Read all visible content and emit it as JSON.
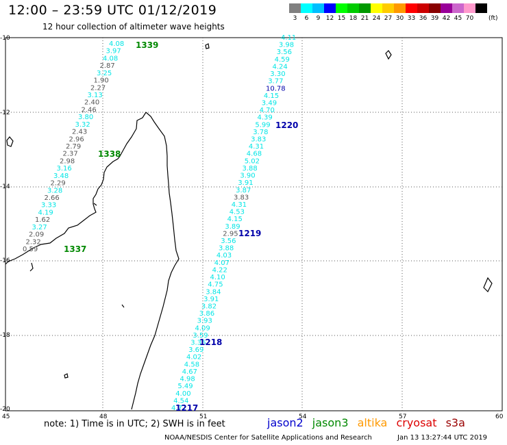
{
  "header": {
    "title": "12:00 – 23:59 UTC 01/12/2019",
    "subtitle": "12 hour collection of altimeter wave heights"
  },
  "legend": {
    "unit": "(ft)",
    "bins": [
      {
        "label": "3",
        "color": "#808080"
      },
      {
        "label": "6",
        "color": "#00ffff"
      },
      {
        "label": "9",
        "color": "#00bfff"
      },
      {
        "label": "12",
        "color": "#0000ff"
      },
      {
        "label": "15",
        "color": "#00ff00"
      },
      {
        "label": "18",
        "color": "#00cc00"
      },
      {
        "label": "21",
        "color": "#009900"
      },
      {
        "label": "24",
        "color": "#ffff00"
      },
      {
        "label": "27",
        "color": "#ffcc00"
      },
      {
        "label": "30",
        "color": "#ff9900"
      },
      {
        "label": "33",
        "color": "#ff0000"
      },
      {
        "label": "36",
        "color": "#cc0000"
      },
      {
        "label": "39",
        "color": "#880000"
      },
      {
        "label": "42",
        "color": "#990099"
      },
      {
        "label": "45",
        "color": "#cc66cc"
      },
      {
        "label": "70",
        "color": "#ff99cc"
      },
      {
        "label": "",
        "color": "#000000"
      }
    ]
  },
  "axes": {
    "lon_ticks": [
      "45",
      "48",
      "51",
      "54",
      "57",
      "60"
    ],
    "lat_ticks": [
      "-10",
      "-12",
      "-14",
      "-16",
      "-18",
      "-20"
    ]
  },
  "colors": {
    "cyan": "#00e5e5",
    "gray": "#555555",
    "navy": "#0000aa",
    "jason2": "#0000cc",
    "jason3": "#008800",
    "altika": "#ff9900",
    "cryosat": "#dd0000",
    "s3a": "#990000"
  },
  "track_labels": {
    "t1339": "1339",
    "t1338": "1338",
    "t1337": "1337",
    "t1220": "1220",
    "t1219": "1219",
    "t1218": "1218",
    "t1217": "1217"
  },
  "left_track": [
    {
      "v": "4.08",
      "c": "cyan"
    },
    {
      "v": "3.97",
      "c": "cyan"
    },
    {
      "v": "4.08",
      "c": "cyan"
    },
    {
      "v": "2.87",
      "c": "gray"
    },
    {
      "v": "3.25",
      "c": "cyan"
    },
    {
      "v": "1.90",
      "c": "gray"
    },
    {
      "v": "2.27",
      "c": "gray"
    },
    {
      "v": "3.13",
      "c": "cyan"
    },
    {
      "v": "2.40",
      "c": "gray"
    },
    {
      "v": "2.46",
      "c": "gray"
    },
    {
      "v": "3.80",
      "c": "cyan"
    },
    {
      "v": "3.32",
      "c": "cyan"
    },
    {
      "v": "2.43",
      "c": "gray"
    },
    {
      "v": "2.96",
      "c": "gray"
    },
    {
      "v": "2.79",
      "c": "gray"
    },
    {
      "v": "2.37",
      "c": "gray"
    },
    {
      "v": "2.98",
      "c": "gray"
    },
    {
      "v": "3.16",
      "c": "cyan"
    },
    {
      "v": "3.48",
      "c": "cyan"
    },
    {
      "v": "2.29",
      "c": "gray"
    },
    {
      "v": "3.28",
      "c": "cyan"
    },
    {
      "v": "2.66",
      "c": "gray"
    },
    {
      "v": "3.33",
      "c": "cyan"
    },
    {
      "v": "4.19",
      "c": "cyan"
    },
    {
      "v": "1.62",
      "c": "gray"
    },
    {
      "v": "3.27",
      "c": "cyan"
    },
    {
      "v": "2.09",
      "c": "gray"
    },
    {
      "v": "2.32",
      "c": "gray"
    },
    {
      "v": "0.59",
      "c": "gray"
    }
  ],
  "right_track": [
    {
      "v": "4.11",
      "c": "cyan"
    },
    {
      "v": "3.98",
      "c": "cyan"
    },
    {
      "v": "3.56",
      "c": "cyan"
    },
    {
      "v": "4.59",
      "c": "cyan"
    },
    {
      "v": "4.24",
      "c": "cyan"
    },
    {
      "v": "3.30",
      "c": "cyan"
    },
    {
      "v": "3.77",
      "c": "cyan"
    },
    {
      "v": "10.78",
      "c": "navy"
    },
    {
      "v": "4.15",
      "c": "cyan"
    },
    {
      "v": "3.49",
      "c": "cyan"
    },
    {
      "v": "4.70",
      "c": "cyan"
    },
    {
      "v": "4.39",
      "c": "cyan"
    },
    {
      "v": "5.99",
      "c": "cyan"
    },
    {
      "v": "3.78",
      "c": "cyan"
    },
    {
      "v": "3.83",
      "c": "cyan"
    },
    {
      "v": "4.31",
      "c": "cyan"
    },
    {
      "v": "4.68",
      "c": "cyan"
    },
    {
      "v": "5.02",
      "c": "cyan"
    },
    {
      "v": "3.88",
      "c": "cyan"
    },
    {
      "v": "3.90",
      "c": "cyan"
    },
    {
      "v": "3.91",
      "c": "cyan"
    },
    {
      "v": "3.87",
      "c": "cyan"
    },
    {
      "v": "3.83",
      "c": "gray"
    },
    {
      "v": "4.31",
      "c": "cyan"
    },
    {
      "v": "4.53",
      "c": "cyan"
    },
    {
      "v": "4.15",
      "c": "cyan"
    },
    {
      "v": "3.89",
      "c": "cyan"
    },
    {
      "v": "2.95",
      "c": "gray"
    },
    {
      "v": "3.56",
      "c": "cyan"
    },
    {
      "v": "3.88",
      "c": "cyan"
    },
    {
      "v": "4.03",
      "c": "cyan"
    },
    {
      "v": "4.07",
      "c": "cyan"
    },
    {
      "v": "4.22",
      "c": "cyan"
    },
    {
      "v": "4.10",
      "c": "cyan"
    },
    {
      "v": "4.75",
      "c": "cyan"
    },
    {
      "v": "3.84",
      "c": "cyan"
    },
    {
      "v": "3.91",
      "c": "cyan"
    },
    {
      "v": "3.82",
      "c": "cyan"
    },
    {
      "v": "3.86",
      "c": "cyan"
    },
    {
      "v": "3.93",
      "c": "cyan"
    },
    {
      "v": "4.09",
      "c": "cyan"
    },
    {
      "v": "3.59",
      "c": "cyan"
    },
    {
      "v": "3.36",
      "c": "cyan"
    },
    {
      "v": "3.69",
      "c": "cyan"
    },
    {
      "v": "4.02",
      "c": "cyan"
    },
    {
      "v": "4.58",
      "c": "cyan"
    },
    {
      "v": "4.67",
      "c": "cyan"
    },
    {
      "v": "4.98",
      "c": "cyan"
    },
    {
      "v": "5.49",
      "c": "cyan"
    },
    {
      "v": "4.00",
      "c": "cyan"
    },
    {
      "v": "4.54",
      "c": "cyan"
    },
    {
      "v": "4.77",
      "c": "cyan"
    }
  ],
  "footer": {
    "note": "note: 1) Time is in UTC; 2) SWH is in feet",
    "jason2": "jason2",
    "jason3": "jason3",
    "altika": "altika",
    "cryosat": "cryosat",
    "s3a": "s3a",
    "credit": "NOAA/NESDIS Center for Satellite Applications and Research",
    "timestamp": "Jan 13 13:27:44 UTC 2019"
  }
}
